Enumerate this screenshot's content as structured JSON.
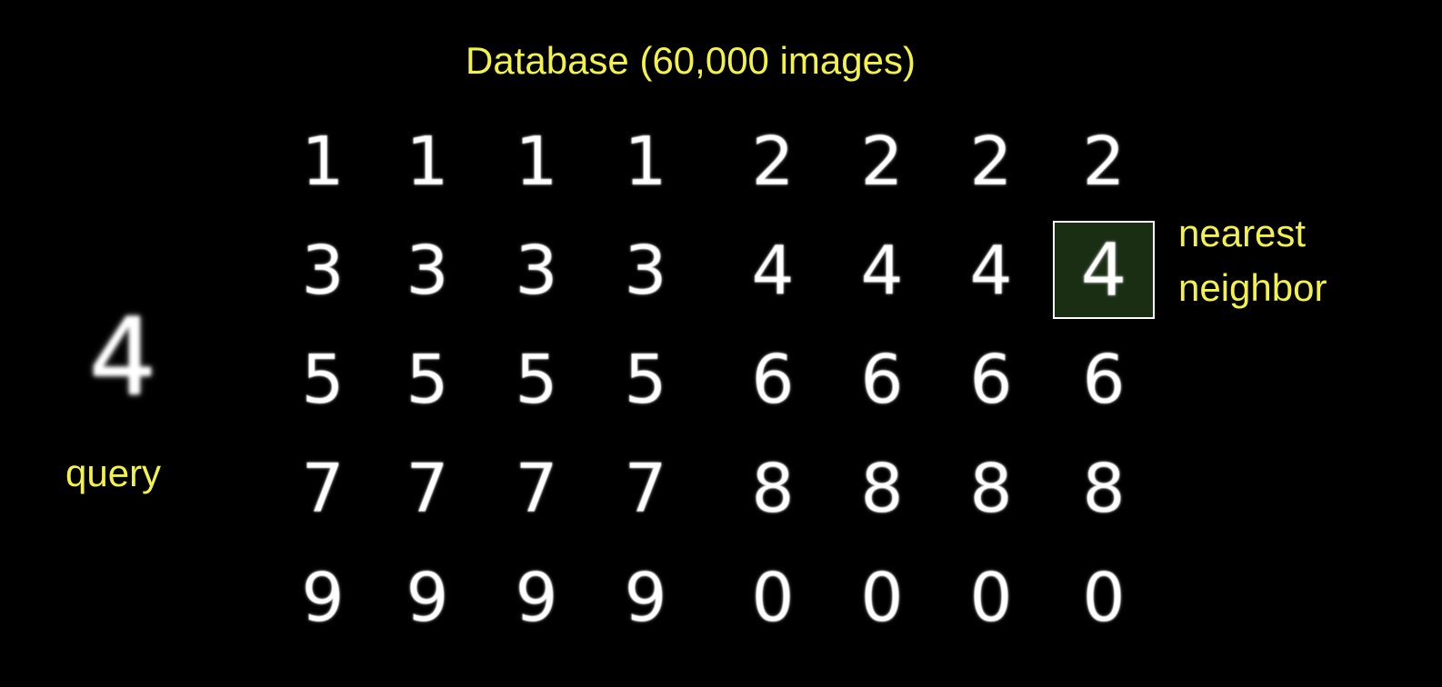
{
  "title": "Database (60,000 images)",
  "query": {
    "label": "query",
    "digit": "4"
  },
  "nearest_neighbor": {
    "label_line1": "nearest",
    "label_line2": "neighbor",
    "row": 1,
    "col": 7,
    "box_color": "#1a2e14"
  },
  "database_grid": [
    [
      "1",
      "1",
      "1",
      "1",
      "2",
      "2",
      "2",
      "2"
    ],
    [
      "3",
      "3",
      "3",
      "3",
      "4",
      "4",
      "4",
      "4"
    ],
    [
      "5",
      "5",
      "5",
      "5",
      "6",
      "6",
      "6",
      "6"
    ],
    [
      "7",
      "7",
      "7",
      "7",
      "8",
      "8",
      "8",
      "8"
    ],
    [
      "9",
      "9",
      "9",
      "9",
      "0",
      "0",
      "0",
      "0"
    ]
  ],
  "text_color": "#f2f24a",
  "digit_color": "#ffffff"
}
